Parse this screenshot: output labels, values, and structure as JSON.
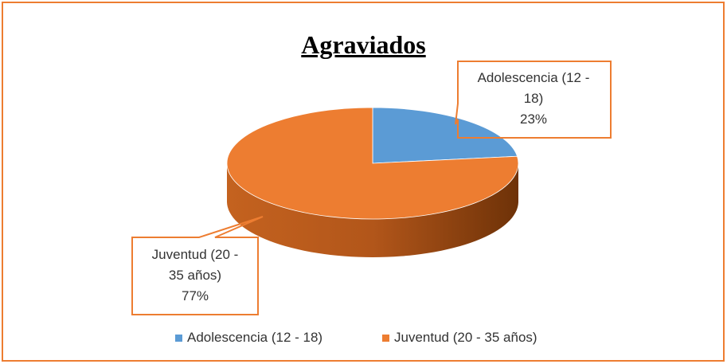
{
  "chart_data": {
    "type": "pie",
    "title": "Agraviados",
    "categories": [
      "Adolescencia (12 - 18)",
      "Juventud (20 - 35 años)"
    ],
    "values": [
      23,
      77
    ],
    "value_labels": [
      "23%",
      "77%"
    ],
    "colors": [
      "#5b9bd5",
      "#ed7d31"
    ],
    "legend": "bottom"
  }
}
